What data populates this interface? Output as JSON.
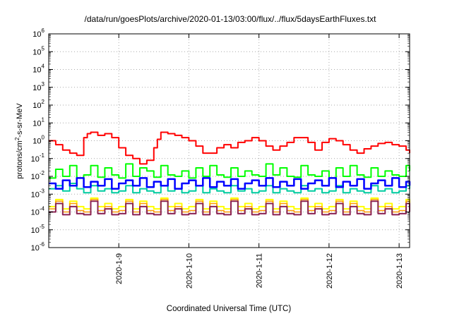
{
  "chart_data": {
    "type": "line",
    "title": "/data/run/goesPlots/archive/2020-01-13/03:00/flux/../flux/5daysEarthFluxes.txt",
    "xlabel": "Coordinated Universal Time (UTC)",
    "ylabel_parts": {
      "base": "protons/cm",
      "sup": "2",
      "rest": "-s-sr-MeV"
    },
    "yscale": "log",
    "ylim_exponents": [
      -6,
      6
    ],
    "ytick_exponents": [
      -6,
      -5,
      -4,
      -3,
      -2,
      -1,
      0,
      1,
      2,
      3,
      4,
      5,
      6
    ],
    "ytick_base": "10",
    "xlim_days": [
      0,
      5.15
    ],
    "xticks": [
      {
        "label": "2020-1-9",
        "day": 1
      },
      {
        "label": "2020-1-10",
        "day": 2
      },
      {
        "label": "2020-1-11",
        "day": 3
      },
      {
        "label": "2020-1-12",
        "day": 4
      },
      {
        "label": "2020-1-13",
        "day": 5
      }
    ],
    "grid": true,
    "series": [
      {
        "color": "#ff0000",
        "width": 2,
        "x": [
          0,
          0.1,
          0.2,
          0.3,
          0.4,
          0.5,
          0.55,
          0.6,
          0.7,
          0.8,
          0.9,
          1.0,
          1.1,
          1.2,
          1.3,
          1.4,
          1.5,
          1.55,
          1.6,
          1.7,
          1.8,
          1.9,
          2.0,
          2.1,
          2.2,
          2.3,
          2.4,
          2.5,
          2.6,
          2.7,
          2.8,
          2.9,
          3.0,
          3.1,
          3.2,
          3.3,
          3.4,
          3.5,
          3.6,
          3.7,
          3.8,
          3.9,
          4.0,
          4.1,
          4.2,
          4.3,
          4.4,
          4.5,
          4.6,
          4.7,
          4.8,
          4.9,
          5.0,
          5.1,
          5.15
        ],
        "y": [
          1.0,
          0.6,
          0.3,
          0.2,
          0.15,
          1.5,
          2.5,
          3.0,
          2.0,
          2.5,
          1.5,
          0.4,
          0.15,
          0.1,
          0.05,
          0.08,
          0.4,
          1.2,
          3.0,
          2.5,
          2.0,
          1.5,
          1.0,
          0.5,
          0.2,
          0.2,
          0.4,
          0.6,
          0.4,
          0.8,
          1.0,
          1.5,
          1.0,
          0.5,
          0.3,
          0.5,
          0.8,
          1.5,
          1.5,
          0.8,
          0.3,
          0.8,
          1.3,
          1.0,
          0.6,
          0.3,
          0.2,
          0.35,
          0.5,
          0.7,
          0.8,
          0.6,
          0.5,
          0.3,
          0.2
        ]
      },
      {
        "color": "#00ff00",
        "width": 2,
        "x": [
          0,
          0.1,
          0.2,
          0.3,
          0.4,
          0.5,
          0.6,
          0.7,
          0.8,
          0.9,
          1.0,
          1.1,
          1.2,
          1.3,
          1.4,
          1.5,
          1.6,
          1.7,
          1.8,
          1.9,
          2.0,
          2.1,
          2.2,
          2.3,
          2.4,
          2.5,
          2.6,
          2.7,
          2.8,
          2.9,
          3.0,
          3.1,
          3.2,
          3.3,
          3.4,
          3.5,
          3.6,
          3.7,
          3.8,
          3.9,
          4.0,
          4.1,
          4.2,
          4.3,
          4.4,
          4.5,
          4.6,
          4.7,
          4.8,
          4.9,
          5.0,
          5.1,
          5.15
        ],
        "y": [
          0.008,
          0.025,
          0.01,
          0.04,
          0.008,
          0.012,
          0.04,
          0.009,
          0.03,
          0.012,
          0.008,
          0.05,
          0.01,
          0.03,
          0.02,
          0.009,
          0.04,
          0.012,
          0.01,
          0.02,
          0.008,
          0.03,
          0.01,
          0.04,
          0.012,
          0.009,
          0.03,
          0.01,
          0.02,
          0.012,
          0.01,
          0.05,
          0.012,
          0.03,
          0.01,
          0.009,
          0.04,
          0.012,
          0.01,
          0.02,
          0.008,
          0.03,
          0.01,
          0.04,
          0.012,
          0.009,
          0.03,
          0.01,
          0.02,
          0.012,
          0.01,
          0.04,
          0.02
        ]
      },
      {
        "color": "#00cca0",
        "width": 2,
        "x": [
          0,
          0.1,
          0.2,
          0.3,
          0.4,
          0.5,
          0.6,
          0.7,
          0.8,
          0.9,
          1.0,
          1.1,
          1.2,
          1.3,
          1.4,
          1.5,
          1.6,
          1.7,
          1.8,
          1.9,
          2.0,
          2.1,
          2.2,
          2.3,
          2.4,
          2.5,
          2.6,
          2.7,
          2.8,
          2.9,
          3.0,
          3.1,
          3.2,
          3.3,
          3.4,
          3.5,
          3.6,
          3.7,
          3.8,
          3.9,
          4.0,
          4.1,
          4.2,
          4.3,
          4.4,
          4.5,
          4.6,
          4.7,
          4.8,
          4.9,
          5.0,
          5.1,
          5.15
        ],
        "y": [
          0.002,
          0.003,
          0.0015,
          0.004,
          0.002,
          0.0012,
          0.003,
          0.0015,
          0.002,
          0.0012,
          0.0015,
          0.003,
          0.0012,
          0.002,
          0.0015,
          0.0012,
          0.003,
          0.0015,
          0.002,
          0.0012,
          0.0015,
          0.003,
          0.0012,
          0.002,
          0.0015,
          0.0012,
          0.003,
          0.0015,
          0.002,
          0.0012,
          0.0015,
          0.003,
          0.0012,
          0.002,
          0.0015,
          0.0012,
          0.003,
          0.0015,
          0.002,
          0.0012,
          0.0015,
          0.003,
          0.0012,
          0.002,
          0.0015,
          0.0012,
          0.003,
          0.0015,
          0.002,
          0.0012,
          0.0015,
          0.003,
          0.002
        ]
      },
      {
        "color": "#0000ff",
        "width": 2.5,
        "x": [
          0,
          0.1,
          0.2,
          0.3,
          0.4,
          0.5,
          0.6,
          0.7,
          0.8,
          0.9,
          1.0,
          1.1,
          1.2,
          1.3,
          1.4,
          1.5,
          1.6,
          1.7,
          1.8,
          1.9,
          2.0,
          2.1,
          2.2,
          2.3,
          2.4,
          2.5,
          2.6,
          2.7,
          2.8,
          2.9,
          3.0,
          3.1,
          3.2,
          3.3,
          3.4,
          3.5,
          3.6,
          3.7,
          3.8,
          3.9,
          4.0,
          4.1,
          4.2,
          4.3,
          4.4,
          4.5,
          4.6,
          4.7,
          4.8,
          4.9,
          5.0,
          5.1,
          5.15
        ],
        "y": [
          0.004,
          0.002,
          0.006,
          0.003,
          0.008,
          0.0025,
          0.005,
          0.003,
          0.007,
          0.002,
          0.004,
          0.006,
          0.003,
          0.008,
          0.0025,
          0.005,
          0.003,
          0.007,
          0.002,
          0.004,
          0.006,
          0.003,
          0.008,
          0.0025,
          0.005,
          0.003,
          0.007,
          0.002,
          0.004,
          0.006,
          0.003,
          0.008,
          0.0025,
          0.005,
          0.003,
          0.007,
          0.002,
          0.004,
          0.006,
          0.003,
          0.008,
          0.0025,
          0.005,
          0.003,
          0.007,
          0.002,
          0.004,
          0.006,
          0.003,
          0.008,
          0.0025,
          0.005,
          0.003
        ]
      },
      {
        "color": "#ffff00",
        "width": 2,
        "x": [
          0,
          0.1,
          0.2,
          0.3,
          0.4,
          0.5,
          0.6,
          0.7,
          0.8,
          0.9,
          1.0,
          1.1,
          1.2,
          1.3,
          1.4,
          1.5,
          1.6,
          1.7,
          1.8,
          1.9,
          2.0,
          2.1,
          2.2,
          2.3,
          2.4,
          2.5,
          2.6,
          2.7,
          2.8,
          2.9,
          3.0,
          3.1,
          3.2,
          3.3,
          3.4,
          3.5,
          3.6,
          3.7,
          3.8,
          3.9,
          4.0,
          4.1,
          4.2,
          4.3,
          4.4,
          4.5,
          4.6,
          4.7,
          4.8,
          4.9,
          5.0,
          5.1,
          5.15
        ],
        "y": [
          0.0002,
          0.0005,
          0.00015,
          0.0004,
          0.0002,
          0.00015,
          0.0006,
          0.0002,
          0.0003,
          0.00015,
          0.0002,
          0.0005,
          0.00015,
          0.0004,
          0.0002,
          0.00015,
          0.0006,
          0.0002,
          0.0003,
          0.00015,
          0.0002,
          0.0005,
          0.00015,
          0.0004,
          0.0002,
          0.00015,
          0.0006,
          0.0002,
          0.0003,
          0.00015,
          0.0002,
          0.0005,
          0.00015,
          0.0004,
          0.0002,
          0.00015,
          0.0006,
          0.0002,
          0.0003,
          0.00015,
          0.0002,
          0.0005,
          0.00015,
          0.0004,
          0.0002,
          0.00015,
          0.0006,
          0.0002,
          0.0003,
          0.00015,
          0.0002,
          0.0005,
          0.0002
        ]
      },
      {
        "color": "#ff9900",
        "width": 1.5,
        "x": [
          0,
          0.1,
          0.2,
          0.3,
          0.4,
          0.5,
          0.6,
          0.7,
          0.8,
          0.9,
          1.0,
          1.1,
          1.2,
          1.3,
          1.4,
          1.5,
          1.6,
          1.7,
          1.8,
          1.9,
          2.0,
          2.1,
          2.2,
          2.3,
          2.4,
          2.5,
          2.6,
          2.7,
          2.8,
          2.9,
          3.0,
          3.1,
          3.2,
          3.3,
          3.4,
          3.5,
          3.6,
          3.7,
          3.8,
          3.9,
          4.0,
          4.1,
          4.2,
          4.3,
          4.4,
          4.5,
          4.6,
          4.7,
          4.8,
          4.9,
          5.0,
          5.1,
          5.15
        ],
        "y": [
          0.00015,
          0.0004,
          0.0001,
          0.0003,
          0.00012,
          0.0001,
          0.0005,
          0.00012,
          0.0002,
          0.0001,
          0.00012,
          0.0004,
          0.0001,
          0.0003,
          0.00012,
          0.0001,
          0.0005,
          0.00012,
          0.0002,
          0.0001,
          0.00012,
          0.0004,
          0.0001,
          0.0003,
          0.00012,
          0.0001,
          0.0005,
          0.00012,
          0.0002,
          0.0001,
          0.00012,
          0.0004,
          0.0001,
          0.0003,
          0.00012,
          0.0001,
          0.0005,
          0.00012,
          0.0002,
          0.0001,
          0.00012,
          0.0004,
          0.0001,
          0.0003,
          0.00012,
          0.0001,
          0.0005,
          0.00012,
          0.0002,
          0.0001,
          0.00012,
          0.0004,
          0.00015
        ]
      },
      {
        "color": "#8b2252",
        "width": 2,
        "x": [
          0,
          0.1,
          0.2,
          0.3,
          0.4,
          0.5,
          0.6,
          0.7,
          0.8,
          0.9,
          1.0,
          1.1,
          1.2,
          1.3,
          1.4,
          1.5,
          1.6,
          1.7,
          1.8,
          1.9,
          2.0,
          2.1,
          2.2,
          2.3,
          2.4,
          2.5,
          2.6,
          2.7,
          2.8,
          2.9,
          3.0,
          3.1,
          3.2,
          3.3,
          3.4,
          3.5,
          3.6,
          3.7,
          3.8,
          3.9,
          4.0,
          4.1,
          4.2,
          4.3,
          4.4,
          4.5,
          4.6,
          4.7,
          4.8,
          4.9,
          5.0,
          5.1,
          5.15
        ],
        "y": [
          0.0001,
          0.0003,
          7e-05,
          0.0002,
          8e-05,
          7e-05,
          0.0004,
          8e-05,
          0.00015,
          7e-05,
          8e-05,
          0.0003,
          7e-05,
          0.0002,
          8e-05,
          7e-05,
          0.0004,
          8e-05,
          0.00015,
          7e-05,
          8e-05,
          0.0003,
          7e-05,
          0.0002,
          8e-05,
          7e-05,
          0.0004,
          8e-05,
          0.00015,
          7e-05,
          8e-05,
          0.0003,
          7e-05,
          0.0002,
          8e-05,
          7e-05,
          0.0004,
          8e-05,
          0.00015,
          7e-05,
          8e-05,
          0.0003,
          7e-05,
          0.0002,
          8e-05,
          7e-05,
          0.0004,
          8e-05,
          0.00015,
          7e-05,
          8e-05,
          0.0003,
          0.0001
        ]
      }
    ]
  }
}
